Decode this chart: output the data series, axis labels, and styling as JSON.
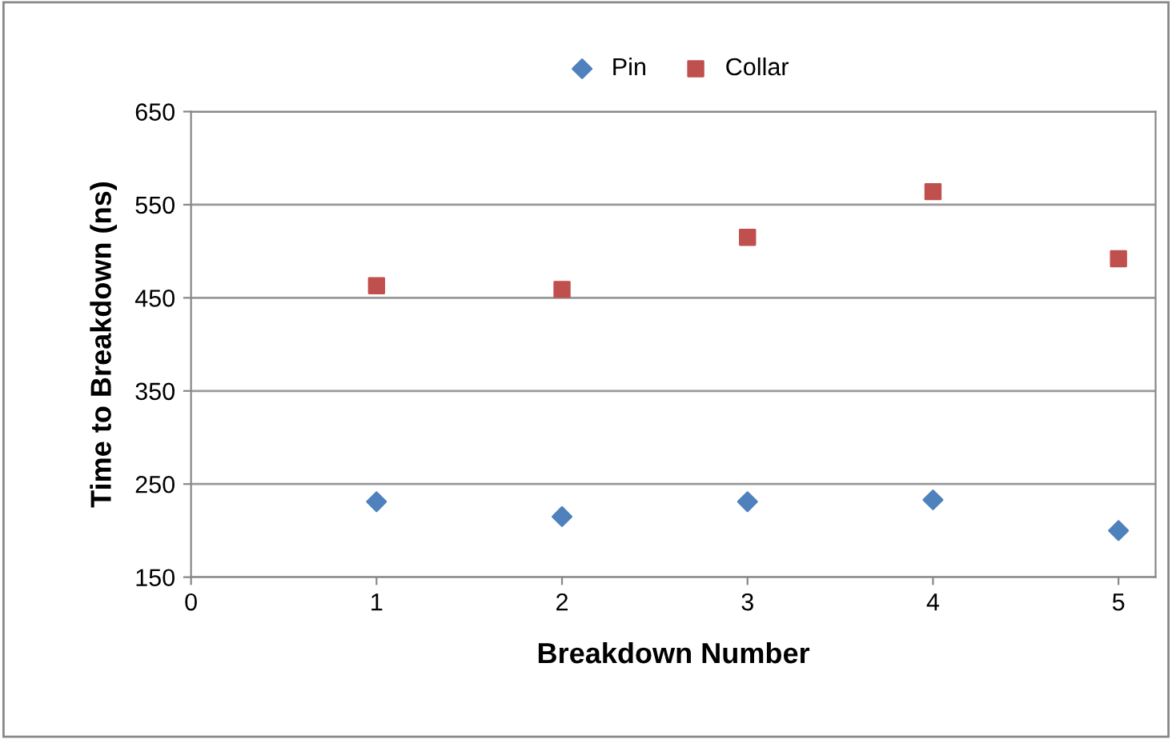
{
  "chart_data": {
    "type": "scatter",
    "xlabel": "Breakdown Number",
    "ylabel": "Time to Breakdown (ns)",
    "x": [
      1,
      2,
      3,
      4,
      5
    ],
    "series": [
      {
        "name": "Pin",
        "color": "#4f81bd",
        "marker": "diamond",
        "values": [
          231,
          215,
          231,
          233,
          200
        ]
      },
      {
        "name": "Collar",
        "color": "#c0504d",
        "marker": "square",
        "values": [
          463,
          459,
          515,
          564,
          492
        ]
      }
    ],
    "xlim": [
      0,
      5.2
    ],
    "xticks": [
      0,
      1,
      2,
      3,
      4,
      5
    ],
    "ylim": [
      150,
      650
    ],
    "yticks": [
      150,
      250,
      350,
      450,
      550,
      650
    ],
    "grid": "y",
    "legend": "top"
  }
}
